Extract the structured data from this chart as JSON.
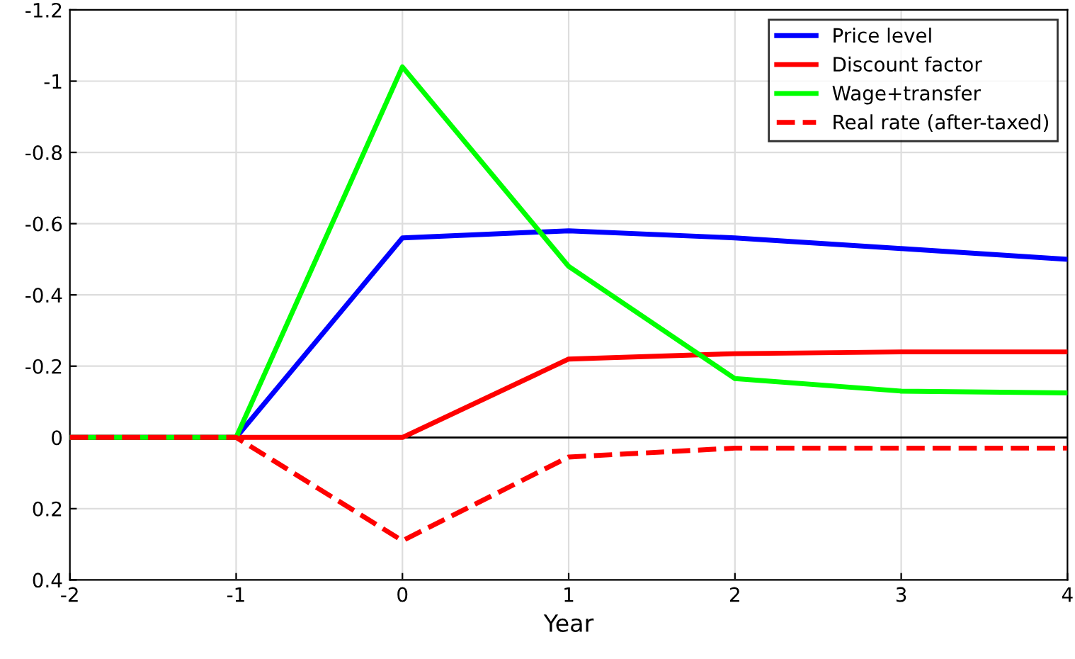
{
  "chart_data": {
    "type": "line",
    "xlabel": "Year",
    "x": [
      -2,
      -1,
      0,
      1,
      2,
      3,
      4
    ],
    "series": [
      {
        "name": "Price level",
        "color": "#0000ff",
        "values": [
          0,
          0,
          -0.56,
          -0.58,
          -0.56,
          -0.53,
          -0.5
        ]
      },
      {
        "name": "Discount factor",
        "color": "#ff0000",
        "values": [
          0,
          0,
          0,
          -0.22,
          -0.235,
          -0.24,
          -0.24
        ]
      },
      {
        "name": "Wage+transfer",
        "color": "#00ff00",
        "values": [
          0,
          0,
          -1.04,
          -0.48,
          -0.165,
          -0.13,
          -0.125
        ]
      },
      {
        "name": "Real rate (after-taxed)",
        "color": "#ff0000",
        "values": [
          0,
          0,
          0.29,
          0.055,
          0.03,
          0.03,
          0.03
        ],
        "line_style": "dashed"
      }
    ],
    "xlim": [
      -2,
      4
    ],
    "xticks": [
      -2,
      -1,
      0,
      1,
      2,
      3,
      4
    ],
    "ylim": [
      0.4,
      -1.2
    ],
    "yticks": [
      -1.2,
      -1,
      -0.8,
      -0.6,
      -0.4,
      -0.2,
      0,
      0.2,
      0.4
    ],
    "ref_lines": [
      {
        "axis": "y",
        "value": 0,
        "color": "#000000"
      }
    ],
    "grid": true,
    "legend": "top right"
  }
}
